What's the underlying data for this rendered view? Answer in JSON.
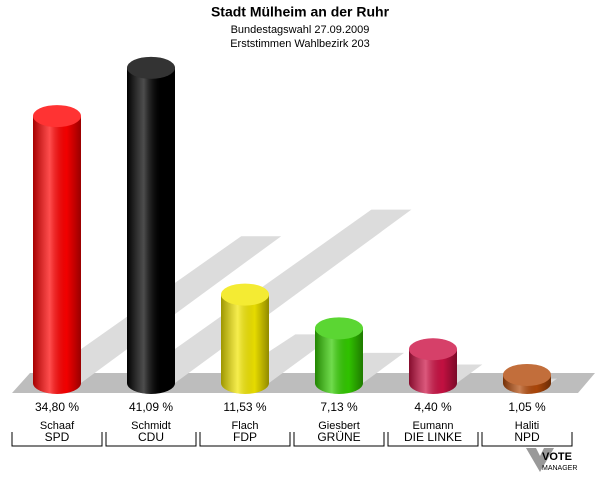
{
  "chart_data": {
    "type": "bar3d",
    "title": "Stadt Mülheim an der Ruhr",
    "subtitle": "Bundestagswahl 27.09.2009",
    "subtitle2": "Erststimmen Wahlbezirk 203",
    "candidates": [
      "Schaaf",
      "Schmidt",
      "Flach",
      "Giesbert",
      "Eumann",
      "Haliti"
    ],
    "categories": [
      "SPD",
      "CDU",
      "FDP",
      "GRÜNE",
      "DIE LINKE",
      "NPD"
    ],
    "values": [
      34.8,
      41.09,
      11.53,
      7.13,
      4.4,
      1.05
    ],
    "value_labels": [
      "34,80 %",
      "41,09 %",
      "11,53 %",
      "7,13 %",
      "4,40 %",
      "1,05 %"
    ],
    "colors": [
      "#ff0000",
      "#000000",
      "#f2e600",
      "#33cc00",
      "#cc1144",
      "#b34a0a"
    ],
    "logo": [
      "VOTE",
      "MANAGER"
    ]
  }
}
